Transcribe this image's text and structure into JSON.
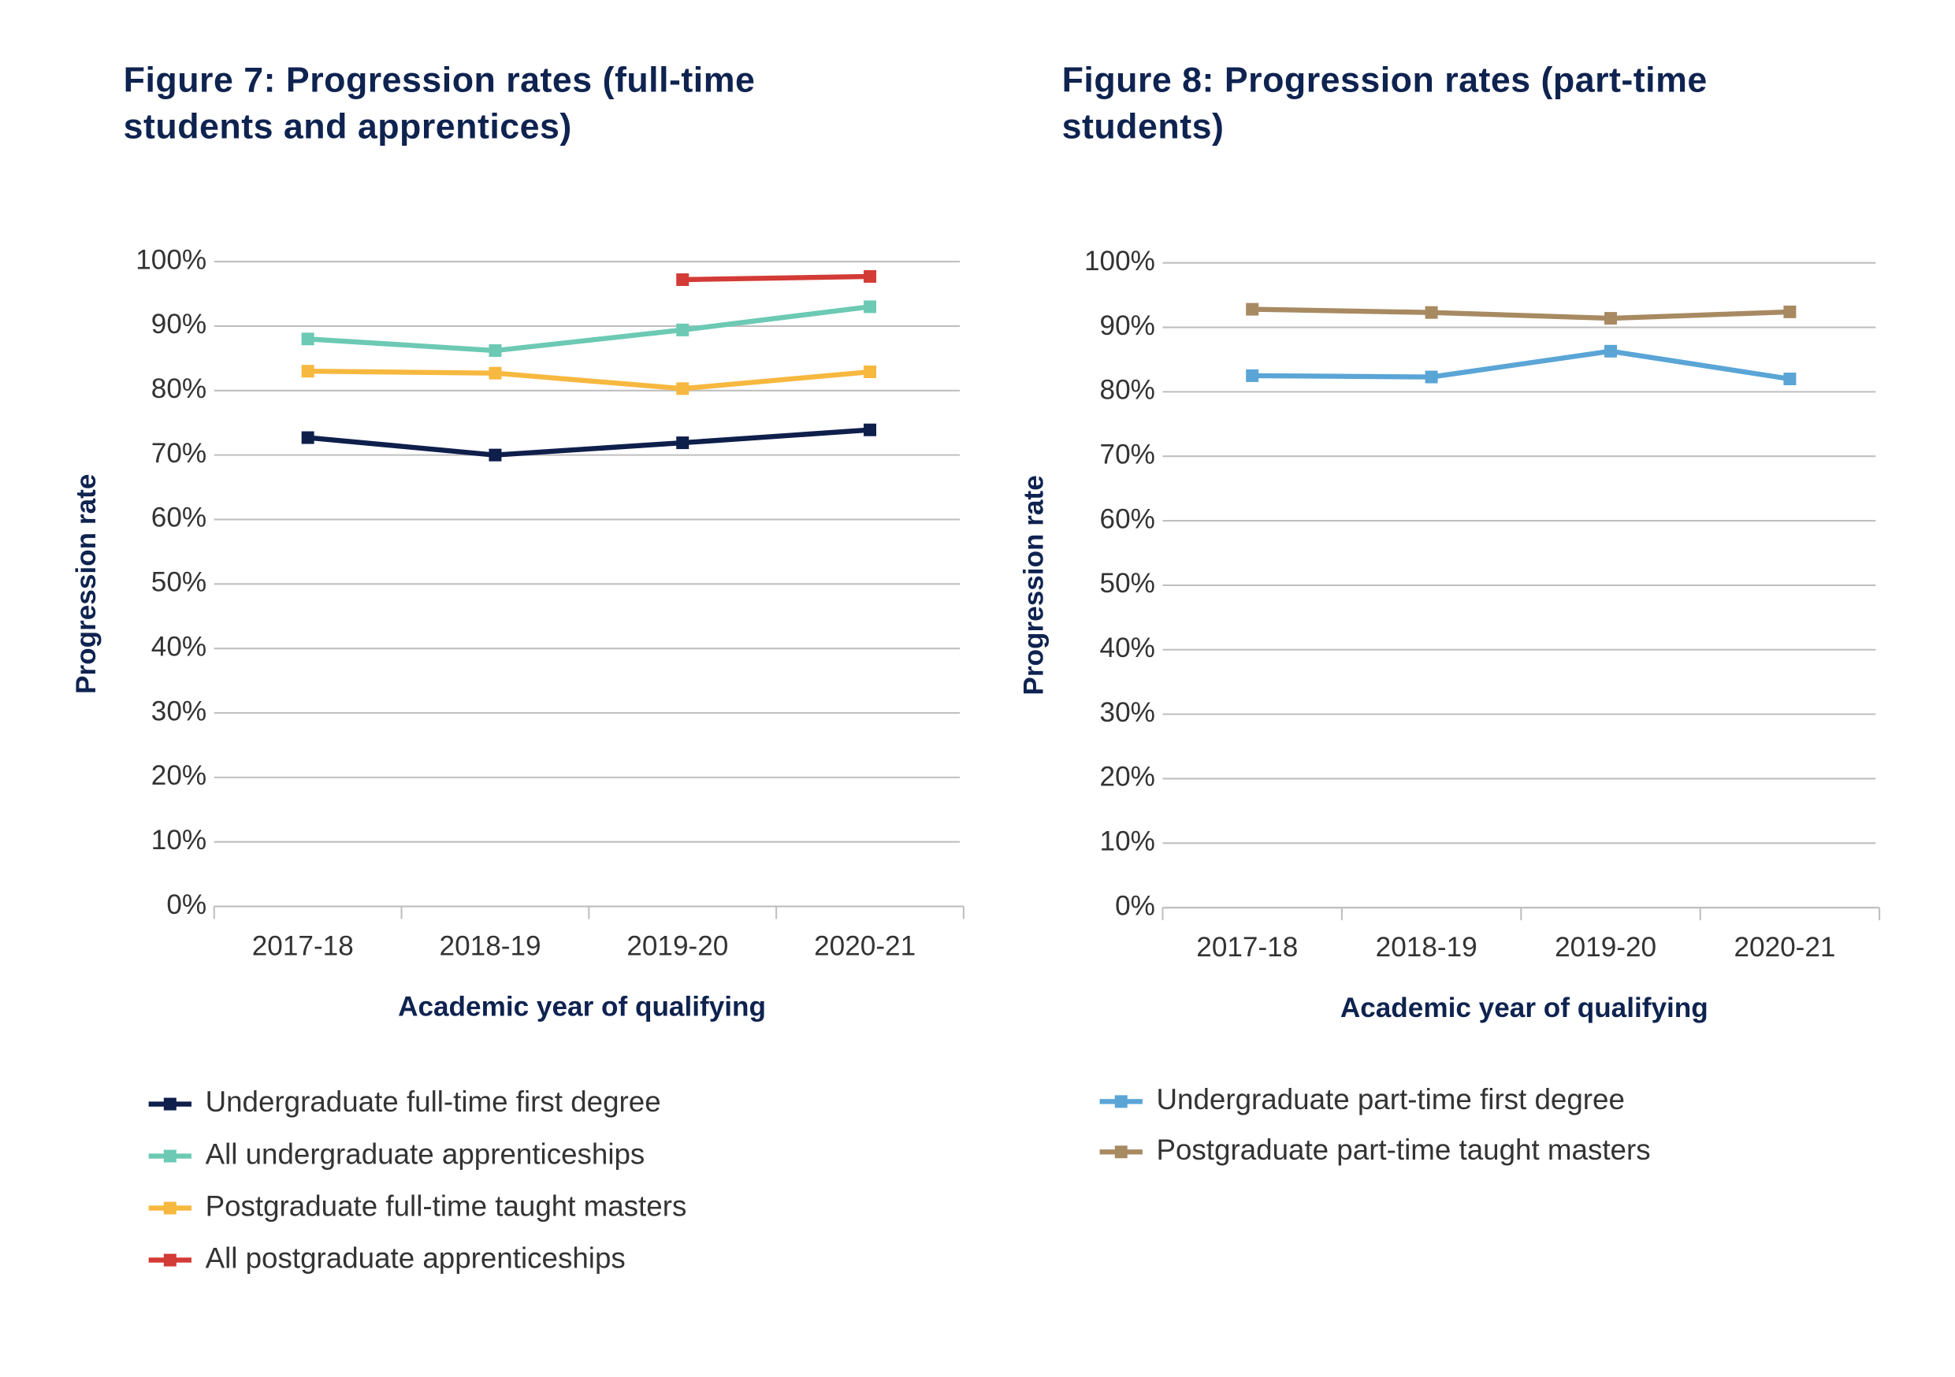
{
  "chart_data": [
    {
      "type": "line",
      "title": "Figure 7: Progression rates (full-time students and apprentices)",
      "x_label": "Academic year of qualifying",
      "y_label": "Progression rate",
      "categories": [
        "2017-18",
        "2018-19",
        "2019-20",
        "2020-21"
      ],
      "series": [
        {
          "name": "Undergraduate full-time first degree",
          "color": "#0f1f4b",
          "values": [
            72.7,
            70.0,
            71.9,
            73.9
          ]
        },
        {
          "name": "All undergraduate apprenticeships",
          "color": "#6cc9b4",
          "values": [
            88.0,
            86.2,
            89.4,
            93.0
          ]
        },
        {
          "name": "Postgraduate full-time taught masters",
          "color": "#f7b83f",
          "values": [
            83.0,
            82.7,
            80.3,
            82.9
          ]
        },
        {
          "name": "All postgraduate apprenticeships",
          "color": "#d33b36",
          "values": [
            null,
            null,
            97.2,
            97.7
          ]
        }
      ],
      "ylim": [
        0,
        100
      ],
      "yticks": [
        {
          "value": 0,
          "label": "0%"
        },
        {
          "value": 10,
          "label": "10%"
        },
        {
          "value": 20,
          "label": "20%"
        },
        {
          "value": 30,
          "label": "30%"
        },
        {
          "value": 40,
          "label": "40%"
        },
        {
          "value": 50,
          "label": "50%"
        },
        {
          "value": 60,
          "label": "60%"
        },
        {
          "value": 70,
          "label": "70%"
        },
        {
          "value": 80,
          "label": "80%"
        },
        {
          "value": 90,
          "label": "90%"
        },
        {
          "value": 100,
          "label": "100%"
        }
      ],
      "grid": true,
      "legend": "bottom"
    },
    {
      "type": "line",
      "title": "Figure 8: Progression rates (part-time students)",
      "x_label": "Academic year of qualifying",
      "y_label": "Progression rate",
      "categories": [
        "2017-18",
        "2018-19",
        "2019-20",
        "2020-21"
      ],
      "series": [
        {
          "name": "Undergraduate part-time first degree",
          "color": "#5aa5d6",
          "values": [
            82.5,
            82.3,
            86.3,
            82.0
          ]
        },
        {
          "name": "Postgraduate part-time taught masters",
          "color": "#a88a62",
          "values": [
            92.8,
            92.3,
            91.4,
            92.4
          ]
        }
      ],
      "ylim": [
        0,
        100
      ],
      "yticks": [
        {
          "value": 0,
          "label": "0%"
        },
        {
          "value": 10,
          "label": "10%"
        },
        {
          "value": 20,
          "label": "20%"
        },
        {
          "value": 30,
          "label": "30%"
        },
        {
          "value": 40,
          "label": "40%"
        },
        {
          "value": 50,
          "label": "50%"
        },
        {
          "value": 60,
          "label": "60%"
        },
        {
          "value": 70,
          "label": "70%"
        },
        {
          "value": 80,
          "label": "80%"
        },
        {
          "value": 90,
          "label": "90%"
        },
        {
          "value": 100,
          "label": "100%"
        }
      ],
      "grid": true,
      "legend": "bottom"
    }
  ]
}
